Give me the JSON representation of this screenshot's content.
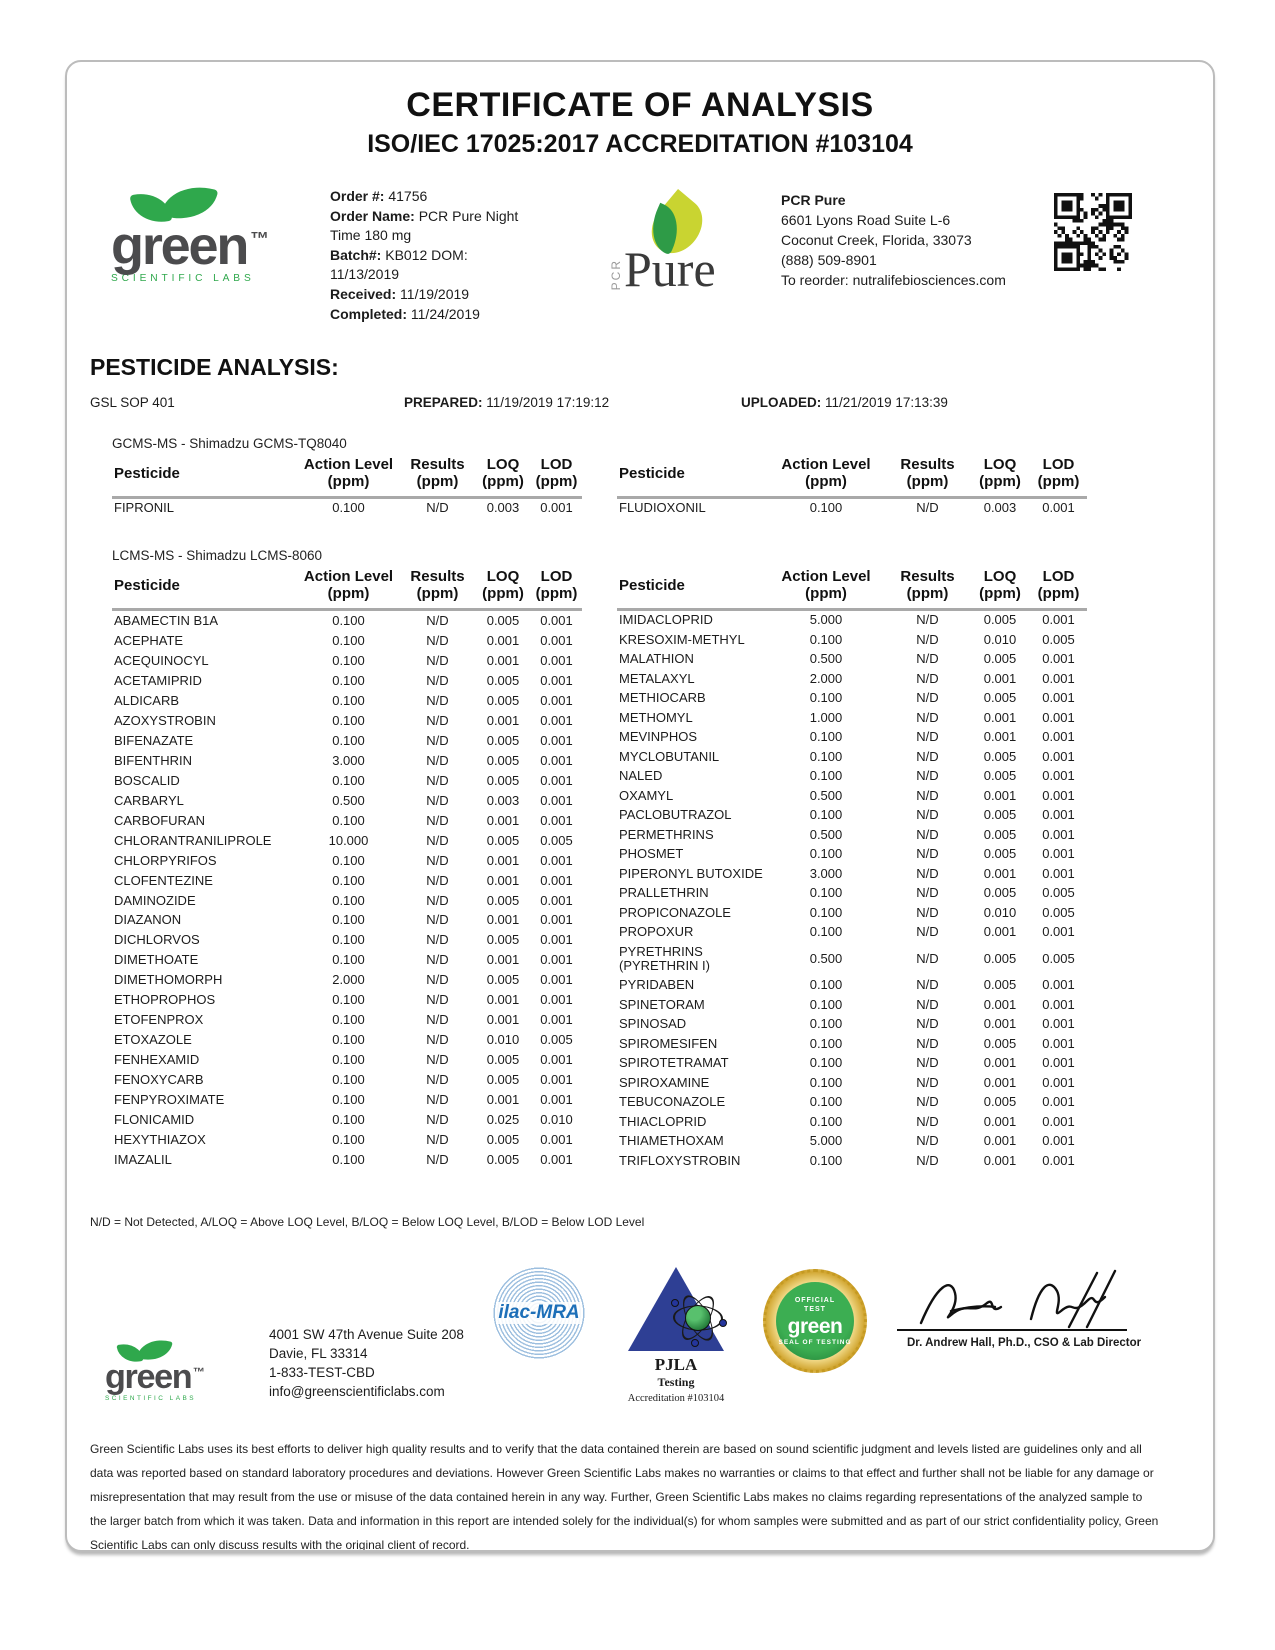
{
  "header": {
    "title": "CERTIFICATE OF ANALYSIS",
    "subtitle": "ISO/IEC 17025:2017 ACCREDITATION #103104",
    "lab_logo": {
      "word": "green",
      "tm": "™",
      "tagline": "SCIENTIFIC LABS"
    },
    "order_info": [
      {
        "label": "Order #:",
        "value": "41756"
      },
      {
        "label": "Order Name:",
        "value": "PCR Pure Night Time 180 mg"
      },
      {
        "label": "Batch#:",
        "value": "KB012 DOM: 11/13/2019"
      },
      {
        "label": "Received:",
        "value": "11/19/2019"
      },
      {
        "label": "Completed:",
        "value": "11/24/2019"
      }
    ],
    "product_logo": {
      "vertical": "PCR",
      "word": "Pure"
    },
    "client": {
      "name": "PCR Pure",
      "lines": [
        "6601 Lyons Road Suite L-6",
        "Coconut Creek, Florida, 33073",
        "(888) 509-8901",
        "To reorder: nutralifebiosciences.com"
      ]
    }
  },
  "pesticide": {
    "section_title": "PESTICIDE ANALYSIS:",
    "sop": "GSL SOP 401",
    "prepared_label": "PREPARED:",
    "prepared_value": "11/19/2019 17:19:12",
    "uploaded_label": "UPLOADED:",
    "uploaded_value": "11/21/2019 17:13:39",
    "columns": [
      {
        "label": "Pesticide",
        "sub": ""
      },
      {
        "label": "Action Level",
        "sub": "(ppm)"
      },
      {
        "label": "Results",
        "sub": "(ppm)"
      },
      {
        "label": "LOQ",
        "sub": "(ppm)"
      },
      {
        "label": "LOD",
        "sub": "(ppm)"
      }
    ],
    "gcms": {
      "instrument": "GCMS-MS - Shimadzu GCMS-TQ8040",
      "left_rows": [
        {
          "name": "FIPRONIL",
          "action_level": "0.100",
          "results": "N/D",
          "loq": "0.003",
          "lod": "0.001"
        }
      ],
      "right_rows": [
        {
          "name": "FLUDIOXONIL",
          "action_level": "0.100",
          "results": "N/D",
          "loq": "0.003",
          "lod": "0.001"
        }
      ]
    },
    "lcms": {
      "instrument": "LCMS-MS - Shimadzu LCMS-8060",
      "left_rows": [
        {
          "name": "ABAMECTIN B1A",
          "action_level": "0.100",
          "results": "N/D",
          "loq": "0.005",
          "lod": "0.001"
        },
        {
          "name": "ACEPHATE",
          "action_level": "0.100",
          "results": "N/D",
          "loq": "0.001",
          "lod": "0.001"
        },
        {
          "name": "ACEQUINOCYL",
          "action_level": "0.100",
          "results": "N/D",
          "loq": "0.001",
          "lod": "0.001"
        },
        {
          "name": "ACETAMIPRID",
          "action_level": "0.100",
          "results": "N/D",
          "loq": "0.005",
          "lod": "0.001"
        },
        {
          "name": "ALDICARB",
          "action_level": "0.100",
          "results": "N/D",
          "loq": "0.005",
          "lod": "0.001"
        },
        {
          "name": "AZOXYSTROBIN",
          "action_level": "0.100",
          "results": "N/D",
          "loq": "0.001",
          "lod": "0.001"
        },
        {
          "name": "BIFENAZATE",
          "action_level": "0.100",
          "results": "N/D",
          "loq": "0.005",
          "lod": "0.001"
        },
        {
          "name": "BIFENTHRIN",
          "action_level": "3.000",
          "results": "N/D",
          "loq": "0.005",
          "lod": "0.001"
        },
        {
          "name": "BOSCALID",
          "action_level": "0.100",
          "results": "N/D",
          "loq": "0.005",
          "lod": "0.001"
        },
        {
          "name": "CARBARYL",
          "action_level": "0.500",
          "results": "N/D",
          "loq": "0.003",
          "lod": "0.001"
        },
        {
          "name": "CARBOFURAN",
          "action_level": "0.100",
          "results": "N/D",
          "loq": "0.001",
          "lod": "0.001"
        },
        {
          "name": "CHLORANTRANILIPROLE",
          "action_level": "10.000",
          "results": "N/D",
          "loq": "0.005",
          "lod": "0.005"
        },
        {
          "name": "CHLORPYRIFOS",
          "action_level": "0.100",
          "results": "N/D",
          "loq": "0.001",
          "lod": "0.001"
        },
        {
          "name": "CLOFENTEZINE",
          "action_level": "0.100",
          "results": "N/D",
          "loq": "0.001",
          "lod": "0.001"
        },
        {
          "name": "DAMINOZIDE",
          "action_level": "0.100",
          "results": "N/D",
          "loq": "0.005",
          "lod": "0.001"
        },
        {
          "name": "DIAZANON",
          "action_level": "0.100",
          "results": "N/D",
          "loq": "0.001",
          "lod": "0.001"
        },
        {
          "name": "DICHLORVOS",
          "action_level": "0.100",
          "results": "N/D",
          "loq": "0.005",
          "lod": "0.001"
        },
        {
          "name": "DIMETHOATE",
          "action_level": "0.100",
          "results": "N/D",
          "loq": "0.001",
          "lod": "0.001"
        },
        {
          "name": "DIMETHOMORPH",
          "action_level": "2.000",
          "results": "N/D",
          "loq": "0.005",
          "lod": "0.001"
        },
        {
          "name": "ETHOPROPHOS",
          "action_level": "0.100",
          "results": "N/D",
          "loq": "0.001",
          "lod": "0.001"
        },
        {
          "name": "ETOFENPROX",
          "action_level": "0.100",
          "results": "N/D",
          "loq": "0.001",
          "lod": "0.001"
        },
        {
          "name": "ETOXAZOLE",
          "action_level": "0.100",
          "results": "N/D",
          "loq": "0.010",
          "lod": "0.005"
        },
        {
          "name": "FENHEXAMID",
          "action_level": "0.100",
          "results": "N/D",
          "loq": "0.005",
          "lod": "0.001"
        },
        {
          "name": "FENOXYCARB",
          "action_level": "0.100",
          "results": "N/D",
          "loq": "0.005",
          "lod": "0.001"
        },
        {
          "name": "FENPYROXIMATE",
          "action_level": "0.100",
          "results": "N/D",
          "loq": "0.001",
          "lod": "0.001"
        },
        {
          "name": "FLONICAMID",
          "action_level": "0.100",
          "results": "N/D",
          "loq": "0.025",
          "lod": "0.010"
        },
        {
          "name": "HEXYTHIAZOX",
          "action_level": "0.100",
          "results": "N/D",
          "loq": "0.005",
          "lod": "0.001"
        },
        {
          "name": "IMAZALIL",
          "action_level": "0.100",
          "results": "N/D",
          "loq": "0.005",
          "lod": "0.001"
        }
      ],
      "right_rows": [
        {
          "name": "IMIDACLOPRID",
          "action_level": "5.000",
          "results": "N/D",
          "loq": "0.005",
          "lod": "0.001"
        },
        {
          "name": "KRESOXIM-METHYL",
          "action_level": "0.100",
          "results": "N/D",
          "loq": "0.010",
          "lod": "0.005"
        },
        {
          "name": "MALATHION",
          "action_level": "0.500",
          "results": "N/D",
          "loq": "0.005",
          "lod": "0.001"
        },
        {
          "name": "METALAXYL",
          "action_level": "2.000",
          "results": "N/D",
          "loq": "0.001",
          "lod": "0.001"
        },
        {
          "name": "METHIOCARB",
          "action_level": "0.100",
          "results": "N/D",
          "loq": "0.005",
          "lod": "0.001"
        },
        {
          "name": "METHOMYL",
          "action_level": "1.000",
          "results": "N/D",
          "loq": "0.001",
          "lod": "0.001"
        },
        {
          "name": "MEVINPHOS",
          "action_level": "0.100",
          "results": "N/D",
          "loq": "0.001",
          "lod": "0.001"
        },
        {
          "name": "MYCLOBUTANIL",
          "action_level": "0.100",
          "results": "N/D",
          "loq": "0.005",
          "lod": "0.001"
        },
        {
          "name": "NALED",
          "action_level": "0.100",
          "results": "N/D",
          "loq": "0.005",
          "lod": "0.001"
        },
        {
          "name": "OXAMYL",
          "action_level": "0.500",
          "results": "N/D",
          "loq": "0.001",
          "lod": "0.001"
        },
        {
          "name": "PACLOBUTRAZOL",
          "action_level": "0.100",
          "results": "N/D",
          "loq": "0.005",
          "lod": "0.001"
        },
        {
          "name": "PERMETHRINS",
          "action_level": "0.500",
          "results": "N/D",
          "loq": "0.005",
          "lod": "0.001"
        },
        {
          "name": "PHOSMET",
          "action_level": "0.100",
          "results": "N/D",
          "loq": "0.005",
          "lod": "0.001"
        },
        {
          "name": "PIPERONYL BUTOXIDE",
          "action_level": "3.000",
          "results": "N/D",
          "loq": "0.001",
          "lod": "0.001"
        },
        {
          "name": "PRALLETHRIN",
          "action_level": "0.100",
          "results": "N/D",
          "loq": "0.005",
          "lod": "0.005"
        },
        {
          "name": "PROPICONAZOLE",
          "action_level": "0.100",
          "results": "N/D",
          "loq": "0.010",
          "lod": "0.005"
        },
        {
          "name": "PROPOXUR",
          "action_level": "0.100",
          "results": "N/D",
          "loq": "0.001",
          "lod": "0.001"
        },
        {
          "name": "PYRETHRINS (PYRETHRIN I)",
          "action_level": "0.500",
          "results": "N/D",
          "loq": "0.005",
          "lod": "0.005"
        },
        {
          "name": "PYRIDABEN",
          "action_level": "0.100",
          "results": "N/D",
          "loq": "0.005",
          "lod": "0.001"
        },
        {
          "name": "SPINETORAM",
          "action_level": "0.100",
          "results": "N/D",
          "loq": "0.001",
          "lod": "0.001"
        },
        {
          "name": "SPINOSAD",
          "action_level": "0.100",
          "results": "N/D",
          "loq": "0.001",
          "lod": "0.001"
        },
        {
          "name": "SPIROMESIFEN",
          "action_level": "0.100",
          "results": "N/D",
          "loq": "0.005",
          "lod": "0.001"
        },
        {
          "name": "SPIROTETRAMAT",
          "action_level": "0.100",
          "results": "N/D",
          "loq": "0.001",
          "lod": "0.001"
        },
        {
          "name": "SPIROXAMINE",
          "action_level": "0.100",
          "results": "N/D",
          "loq": "0.001",
          "lod": "0.001"
        },
        {
          "name": "TEBUCONAZOLE",
          "action_level": "0.100",
          "results": "N/D",
          "loq": "0.005",
          "lod": "0.001"
        },
        {
          "name": "THIACLOPRID",
          "action_level": "0.100",
          "results": "N/D",
          "loq": "0.001",
          "lod": "0.001"
        },
        {
          "name": "THIAMETHOXAM",
          "action_level": "5.000",
          "results": "N/D",
          "loq": "0.001",
          "lod": "0.001"
        },
        {
          "name": "TRIFLOXYSTROBIN",
          "action_level": "0.100",
          "results": "N/D",
          "loq": "0.001",
          "lod": "0.001"
        }
      ]
    },
    "legend": "N/D = Not Detected, A/LOQ = Above LOQ Level, B/LOQ = Below LOQ Level, B/LOD = Below LOD Level"
  },
  "footer": {
    "address_lines": [
      "4001 SW 47th Avenue Suite 208",
      "Davie, FL 33314",
      "1-833-TEST-CBD",
      "info@greenscientificlabs.com"
    ],
    "ilac_label": "ilac-MRA",
    "pjla": {
      "name": "PJLA",
      "sub": "Testing",
      "accreditation": "Accreditation #103104"
    },
    "seal": {
      "top": "OFFICIAL TEST",
      "word": "green",
      "bottom": "SEAL OF TESTING"
    },
    "signer": "Dr. Andrew Hall, Ph.D., CSO & Lab Director"
  },
  "disclaimer": "Green Scientific Labs uses its best efforts to deliver high quality results and to verify that the data contained therein are based on sound scientific judgment and levels listed are guidelines only and all data was reported based on standard laboratory procedures and deviations. However Green Scientific Labs makes no warranties or claims to that effect and further shall not be liable for any damage or misrepresentation that may result from the use or misuse of the data contained herein in any way. Further, Green Scientific Labs makes no claims regarding representations of the analyzed sample to the larger batch from which it was taken. Data and information in this report are intended solely for the individual(s) for whom samples were submitted and as part of our strict confidentiality policy, Green Scientific Labs can only discuss results with the original client of record.",
  "colors": {
    "logo_green": "#2fa84c",
    "logo_gray": "#4b4b4d",
    "pcr_yellow_green": "#c9d431",
    "pcr_leaf_green": "#2e9b47",
    "ilac_blue": "#1d6fb8",
    "pjla_navy": "#2e3f94",
    "seal_gold": "#d0a42e",
    "seal_green": "#2f9e41",
    "table_rule_gray": "#a9a9a9"
  }
}
